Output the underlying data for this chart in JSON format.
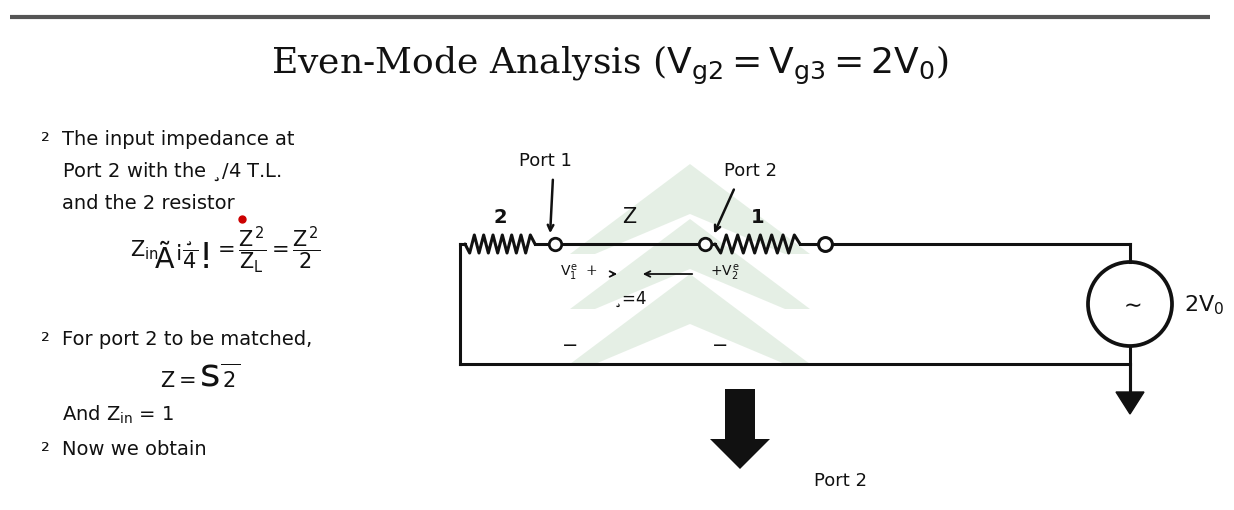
{
  "title": "Even-Mode Analysis ($V_{g2} = V_{g3} = 2V_0$)",
  "title_fontsize": 26,
  "bg_color": "#ffffff",
  "text_color": "#111111",
  "bullet1_line1": "The input impedance at",
  "bullet1_line2": "Port 2 with the $\\lambda$/4 T.L.",
  "bullet1_line3": "and the 2 resistor",
  "equation1": "$Z_{in}\\!\\left(-\\dfrac{\\lambda}{4}\\right) = \\dfrac{Z^2}{Z_L} = \\dfrac{Z^2}{2}$",
  "bullet2_line1": "For port 2 to be matched,",
  "equation2": "$Z = \\sqrt{2}$",
  "bullet2_line2": "And $Z_{in}$ = 1",
  "bullet3": "Now we obtain",
  "circuit_port1_label": "Port 1",
  "circuit_port2_label": "Port 2",
  "circuit_res2_label": "2",
  "circuit_Z_label": "$Z$",
  "circuit_res1_label": "1",
  "circuit_lambda4_label": "$\\lambda/4$",
  "circuit_V1_label": "$V_1^e$  +",
  "circuit_V2_label": "$+V_2^e$",
  "circuit_source_label": "$2V_0$",
  "circuit_minus1": "−",
  "circuit_minus2": "−",
  "watermark_color": "#c0d8c0",
  "wire_color": "#111111",
  "down_arrow_color": "#111111",
  "red_dot_color": "#cc0000"
}
